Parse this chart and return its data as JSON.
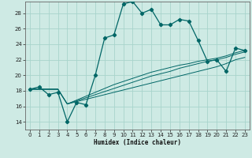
{
  "xlabel": "Humidex (Indice chaleur)",
  "bg_color": "#ceeae4",
  "grid_color": "#a8d4cc",
  "line_color": "#006666",
  "xlim": [
    -0.5,
    23.5
  ],
  "ylim": [
    13.0,
    29.5
  ],
  "xticks": [
    0,
    1,
    2,
    3,
    4,
    5,
    6,
    7,
    8,
    9,
    10,
    11,
    12,
    13,
    14,
    15,
    16,
    17,
    18,
    19,
    20,
    21,
    22,
    23
  ],
  "yticks": [
    14,
    16,
    18,
    20,
    22,
    24,
    26,
    28
  ],
  "humidex_curve": [
    18.2,
    18.5,
    17.5,
    17.8,
    14.0,
    16.5,
    16.2,
    20.0,
    24.8,
    25.2,
    29.2,
    29.5,
    28.0,
    28.5,
    26.5,
    26.5,
    27.2,
    27.0,
    24.5,
    21.8,
    22.0,
    20.5,
    23.5,
    23.2
  ],
  "line2": [
    18.2,
    18.2,
    18.2,
    18.2,
    16.3,
    16.6,
    16.9,
    17.2,
    17.5,
    17.8,
    18.1,
    18.4,
    18.7,
    19.0,
    19.3,
    19.6,
    19.9,
    20.2,
    20.5,
    20.8,
    21.1,
    21.5,
    22.0,
    22.3
  ],
  "line3": [
    18.2,
    18.2,
    18.2,
    18.2,
    16.3,
    16.7,
    17.1,
    17.5,
    17.9,
    18.3,
    18.7,
    19.1,
    19.5,
    19.9,
    20.2,
    20.5,
    20.9,
    21.2,
    21.5,
    21.8,
    22.0,
    22.3,
    22.7,
    23.0
  ],
  "line4": [
    18.2,
    18.2,
    18.2,
    18.2,
    16.3,
    16.8,
    17.3,
    17.8,
    18.3,
    18.8,
    19.2,
    19.6,
    20.0,
    20.4,
    20.7,
    21.0,
    21.3,
    21.5,
    21.8,
    22.0,
    22.2,
    22.5,
    22.9,
    23.2
  ]
}
